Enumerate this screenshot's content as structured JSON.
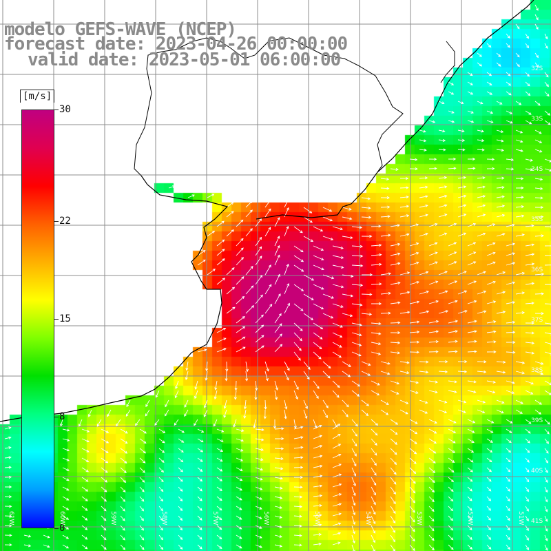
{
  "map": {
    "title_lines": [
      "modelo GEFS-WAVE (NCEP)",
      "forecast date: 2023-04-26 00:00:00",
      "valid date: 2023-05-01 06:00:00"
    ],
    "field_variable": "wind speed",
    "colorbar": {
      "unit": "[m/s]",
      "min": 0,
      "max": 30,
      "ticks": [
        "30",
        "22",
        "15",
        "8",
        "0"
      ],
      "tick_values": [
        30,
        22,
        15,
        8,
        0
      ],
      "gradient_colors": [
        "#0000ff",
        "#00a0ff",
        "#00ffff",
        "#00ff80",
        "#00e000",
        "#80ff00",
        "#ffff00",
        "#ffb000",
        "#ff6000",
        "#ff0000",
        "#e00050",
        "#c00080"
      ]
    },
    "latitude_labels": [
      "32S",
      "33S",
      "34S",
      "35S",
      "36S",
      "37S",
      "38S",
      "39S",
      "40S",
      "41S"
    ],
    "longitude_labels": [
      "61W",
      "60W",
      "59W",
      "58W",
      "57W",
      "56W",
      "55W",
      "54W",
      "53W",
      "52W",
      "51W"
    ],
    "land_color": "#ffffff",
    "arrow_color": "#ffffff",
    "grid_color": "#8c8c8c"
  }
}
